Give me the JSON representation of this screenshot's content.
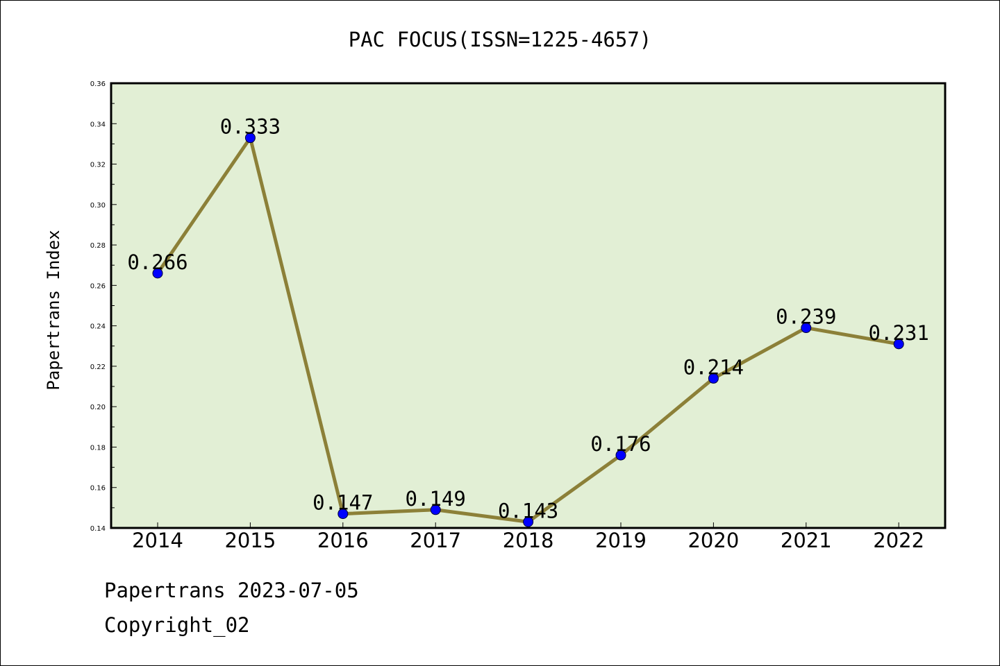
{
  "chart_data": {
    "type": "line",
    "title": "PAC FOCUS(ISSN=1225-4657)",
    "xlabel": "",
    "ylabel": "Papertrans Index",
    "categories": [
      "2014",
      "2015",
      "2016",
      "2017",
      "2018",
      "2019",
      "2020",
      "2021",
      "2022"
    ],
    "values": [
      0.266,
      0.333,
      0.147,
      0.149,
      0.143,
      0.176,
      0.214,
      0.239,
      0.231
    ],
    "data_labels": [
      "0.266",
      "0.333",
      "0.147",
      "0.149",
      "0.143",
      "0.176",
      "0.214",
      "0.239",
      "0.231"
    ],
    "ylim": [
      0.14,
      0.36
    ],
    "yticks": [
      "0.14",
      "0.16",
      "0.18",
      "0.20",
      "0.22",
      "0.24",
      "0.26",
      "0.28",
      "0.30",
      "0.32",
      "0.34",
      "0.36"
    ],
    "ytick_values": [
      0.14,
      0.16,
      0.18,
      0.2,
      0.22,
      0.24,
      0.26,
      0.28,
      0.3,
      0.32,
      0.34,
      0.36
    ],
    "grid": false,
    "legend": "none",
    "colors": {
      "plot_background": "#e2efd5",
      "line": "#8c8038",
      "marker": "#0000ff",
      "axis": "#000000"
    }
  },
  "footer": {
    "line1": "Papertrans 2023-07-05",
    "line2": "Copyright_02"
  }
}
